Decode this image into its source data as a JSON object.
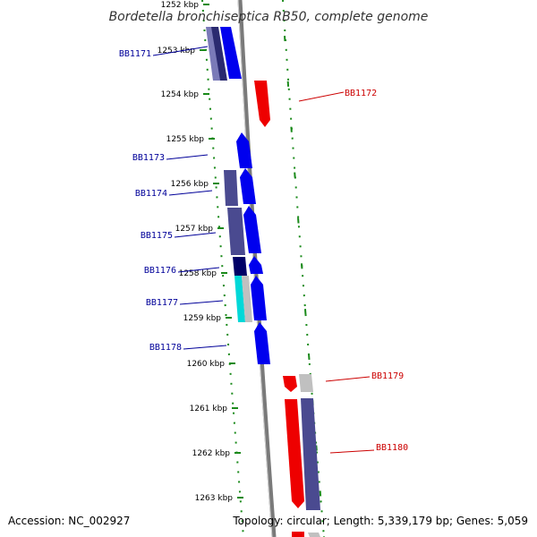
{
  "title": "Bordetella bronchiseptica RB50, complete genome",
  "footer": {
    "accession": "Accession: NC_002927",
    "topology": "Topology: circular; Length: 5,339,179 bp; Genes: 5,059"
  },
  "colors": {
    "backbone": "#808080",
    "forward_cds": "#0000ee",
    "reverse_cds": "#ee0000",
    "gene_label_left": "#000099",
    "gene_label_right": "#cc0000",
    "cog_dark": "#3a3a8a",
    "cog_navy": "#000066",
    "cog_cyan": "#00d8d8",
    "cog_grey": "#c0c0c0",
    "tick_green": "#1a8a1a"
  },
  "tick_labels": [
    "1252 kbp",
    "1253 kbp",
    "1254 kbp",
    "1255 kbp",
    "1256 kbp",
    "1257 kbp",
    "1258 kbp",
    "1259 kbp",
    "1260 kbp",
    "1261 kbp",
    "1262 kbp",
    "1263 kbp"
  ],
  "genes": [
    {
      "name": "BB1171",
      "strand": "forward"
    },
    {
      "name": "BB1172",
      "strand": "reverse"
    },
    {
      "name": "BB1173",
      "strand": "forward"
    },
    {
      "name": "BB1174",
      "strand": "forward"
    },
    {
      "name": "BB1175",
      "strand": "forward"
    },
    {
      "name": "BB1176",
      "strand": "forward"
    },
    {
      "name": "BB1177",
      "strand": "forward"
    },
    {
      "name": "BB1178",
      "strand": "forward"
    },
    {
      "name": "BB1179",
      "strand": "reverse"
    },
    {
      "name": "BB1180",
      "strand": "reverse"
    }
  ]
}
